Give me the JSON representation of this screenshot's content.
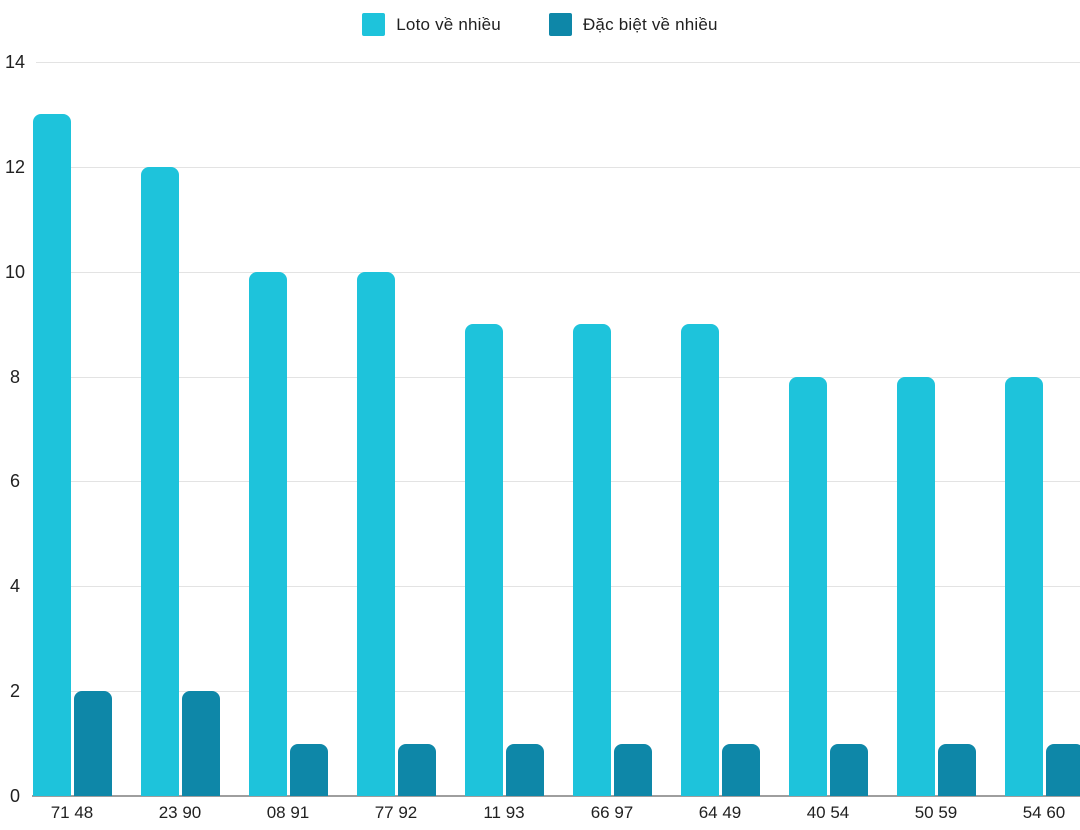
{
  "chart_data": {
    "type": "bar",
    "title": "",
    "categories": [
      "71 48",
      "23 90",
      "08 91",
      "77 92",
      "11 93",
      "66 97",
      "64 49",
      "40 54",
      "50 59",
      "54 60"
    ],
    "series": [
      {
        "name": "Loto về nhiều",
        "color": "#1EC3DB",
        "values": [
          13,
          12,
          10,
          10,
          9,
          9,
          9,
          8,
          8,
          8
        ]
      },
      {
        "name": "Đặc biệt về nhiều",
        "color": "#0E87A8",
        "values": [
          2,
          2,
          1,
          1,
          1,
          1,
          1,
          1,
          1,
          1
        ]
      }
    ],
    "xlabel": "",
    "ylabel": "",
    "ylim": [
      0,
      14
    ],
    "yticks": [
      0,
      2,
      4,
      6,
      8,
      10,
      12,
      14
    ],
    "grid": true,
    "legend_position": "top"
  },
  "colors": {
    "gridline": "#E3E3E3",
    "baseline": "#9E9E9E",
    "text": "#212121",
    "background": "#FFFFFF"
  }
}
